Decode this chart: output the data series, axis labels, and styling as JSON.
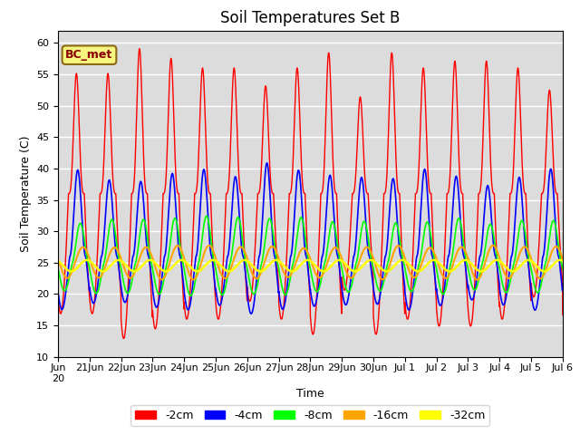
{
  "title": "Soil Temperatures Set B",
  "xlabel": "Time",
  "ylabel": "Soil Temperature (C)",
  "ylim": [
    10,
    62
  ],
  "yticks": [
    10,
    15,
    20,
    25,
    30,
    35,
    40,
    45,
    50,
    55,
    60
  ],
  "bg_color": "#dcdcdc",
  "legend_labels": [
    "-2cm",
    "-4cm",
    "-8cm",
    "-16cm",
    "-32cm"
  ],
  "legend_colors": [
    "red",
    "blue",
    "lime",
    "orange",
    "yellow"
  ],
  "annotation_text": "BC_met",
  "annotation_bg": "#f5f580",
  "annotation_border": "#8b6914"
}
